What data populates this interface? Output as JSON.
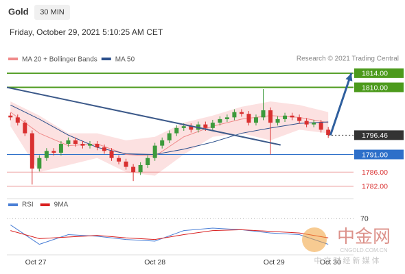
{
  "chart_data": {
    "type": "candlestick",
    "title": "Gold",
    "timeframe": "30 MIN",
    "subtitle": "Friday, October 29, 2021 5:10:25 AM CET",
    "credit": "Research © 2021 Trading Central",
    "xlim": [
      -0.5,
      47.5
    ],
    "ylim": [
      1778.5,
      1816.3
    ],
    "xticks": [
      {
        "value": 3.5,
        "label": "Oct 27"
      },
      {
        "value": 20,
        "label": "Oct 28"
      },
      {
        "value": 36.5,
        "label": "Oct 29"
      },
      {
        "value": 44.3,
        "label": "Oct 30"
      }
    ],
    "up_color": "#3c9a3c",
    "down_color": "#d93030",
    "x": [
      0,
      1,
      2,
      3,
      4,
      5,
      6,
      7,
      8,
      9,
      10,
      11,
      12,
      13,
      14,
      15,
      16,
      17,
      18,
      19,
      20,
      21,
      22,
      23,
      24,
      25,
      26,
      27,
      28,
      29,
      30,
      31,
      32,
      33,
      34,
      35,
      36,
      37,
      38,
      39,
      40,
      41,
      42,
      43,
      44
    ],
    "open": [
      1802,
      1801.5,
      1800,
      1797,
      1787,
      1790,
      1792,
      1791.5,
      1794,
      1795,
      1794,
      1793.5,
      1794,
      1793,
      1792,
      1790,
      1789,
      1787.5,
      1786,
      1788,
      1790,
      1793.5,
      1795,
      1797,
      1798.5,
      1799,
      1798,
      1799.5,
      1798.5,
      1800,
      1801,
      1801.5,
      1803,
      1802.5,
      1800,
      1801.5,
      1803.5,
      1800,
      1801,
      1802,
      1801.5,
      1800.5,
      1799.5,
      1800,
      1798
    ],
    "high": [
      1802.8,
      1802.3,
      1800.8,
      1797.8,
      1790.8,
      1792.8,
      1792.8,
      1794.8,
      1795.8,
      1795.8,
      1794.8,
      1794.8,
      1794.8,
      1793.8,
      1792.8,
      1790.8,
      1789.8,
      1788.3,
      1788.8,
      1790.8,
      1794.3,
      1795.8,
      1797.8,
      1799.3,
      1799.8,
      1799.8,
      1800.3,
      1800.3,
      1800.8,
      1801.8,
      1802.3,
      1803.8,
      1803.8,
      1803.3,
      1802.3,
      1809.5,
      1804.3,
      1801.8,
      1802.8,
      1802.8,
      1802.3,
      1801.3,
      1800.8,
      1800.8,
      1798.8
    ],
    "low": [
      1800.7,
      1799.2,
      1796.2,
      1782.5,
      1786.2,
      1789.2,
      1790.7,
      1790.7,
      1793.2,
      1793.2,
      1792.7,
      1792.7,
      1792.2,
      1791.2,
      1789.2,
      1788.2,
      1786.7,
      1783.5,
      1785.2,
      1787.2,
      1789.2,
      1792.7,
      1794.2,
      1796.2,
      1797.7,
      1797.2,
      1797.2,
      1797.7,
      1797.7,
      1799.2,
      1800.2,
      1800.7,
      1801.7,
      1799.2,
      1799.2,
      1800.7,
      1791,
      1799.2,
      1800.2,
      1800.7,
      1799.7,
      1798.7,
      1798.7,
      1797.2,
      1795.7
    ],
    "close": [
      1801.5,
      1800,
      1797,
      1787,
      1790,
      1792,
      1791.5,
      1794,
      1795,
      1794,
      1793.5,
      1794,
      1793,
      1792,
      1790,
      1789,
      1787.5,
      1786,
      1788,
      1790,
      1793.5,
      1795,
      1797,
      1798.5,
      1799,
      1798,
      1799.5,
      1798.5,
      1800,
      1801,
      1801.5,
      1803,
      1802.5,
      1800,
      1801.5,
      1803.5,
      1800,
      1801,
      1802,
      1801.5,
      1800.5,
      1799.5,
      1800,
      1798,
      1796.5
    ],
    "series": [
      {
        "name": "MA 20 + Bollinger Bands",
        "color": "#f08a8a",
        "band_color": "#fbd9d9",
        "x": [
          0,
          4,
          8,
          12,
          16,
          20,
          24,
          28,
          32,
          36,
          40,
          44
        ],
        "values": [
          1803,
          1797,
          1793.5,
          1794,
          1791,
          1790.5,
          1796,
          1799,
          1801,
          1802,
          1801.5,
          1800
        ],
        "upper": [
          1806,
          1802,
          1797,
          1797,
          1795,
          1796,
          1800,
          1802,
          1804.5,
          1806,
          1805,
          1803
        ],
        "lower": [
          1799,
          1786,
          1788,
          1790,
          1786,
          1785,
          1791,
          1796,
          1797,
          1795,
          1798,
          1797
        ]
      },
      {
        "name": "MA 50",
        "color": "#2b4f8c",
        "x": [
          0,
          4,
          8,
          12,
          16,
          20,
          24,
          28,
          32,
          36,
          40,
          44
        ],
        "values": [
          1805,
          1801,
          1796.5,
          1793,
          1791.2,
          1791,
          1792.5,
          1794.5,
          1797,
          1798.5,
          1799.8,
          1800.2
        ]
      }
    ],
    "trendline": {
      "color": "#3d5a8a",
      "x": [
        -0.5,
        37.4
      ],
      "values": [
        1810,
        1793.7
      ]
    },
    "arrow": {
      "color": "#2f5f9e",
      "x": [
        44.3,
        47.2
      ],
      "values": [
        1796.46,
        1814
      ]
    },
    "levels": [
      {
        "value": 1814,
        "label": "1814.00",
        "color": "#4c9a1c",
        "box": true
      },
      {
        "value": 1810,
        "label": "1810.00",
        "color": "#4c9a1c",
        "box": true
      },
      {
        "value": 1796.46,
        "color": "#333333",
        "box": true
      },
      {
        "value": 1791,
        "label": "1791.00",
        "color": "#2d6fc9",
        "box": true
      },
      {
        "value": 1786,
        "label": "1786.00",
        "color": "#d93030",
        "box": false
      },
      {
        "value": 1782,
        "label": "1782.00",
        "color": "#d93030",
        "box": false
      }
    ],
    "rsi": {
      "ylim": [
        25,
        75
      ],
      "yticks": [
        70
      ],
      "series": [
        {
          "name": "RSI",
          "color": "#4a7fd6",
          "x": [
            0,
            4,
            8,
            12,
            16,
            20,
            24,
            28,
            32,
            36,
            40,
            44
          ],
          "values": [
            62,
            38,
            50,
            48,
            44,
            42,
            55,
            58,
            56,
            52,
            50,
            38
          ]
        },
        {
          "name": "9MA",
          "color": "#d92020",
          "x": [
            0,
            4,
            8,
            12,
            16,
            20,
            24,
            28,
            32,
            36,
            40,
            44
          ],
          "values": [
            55,
            45,
            47,
            49,
            46,
            44,
            50,
            55,
            56,
            54,
            52,
            46
          ]
        }
      ]
    }
  },
  "watermark": {
    "brand": "中金网",
    "site": "CNGOLD.COM.CN",
    "slogan": "中 文 财 经 新 媒 体"
  }
}
